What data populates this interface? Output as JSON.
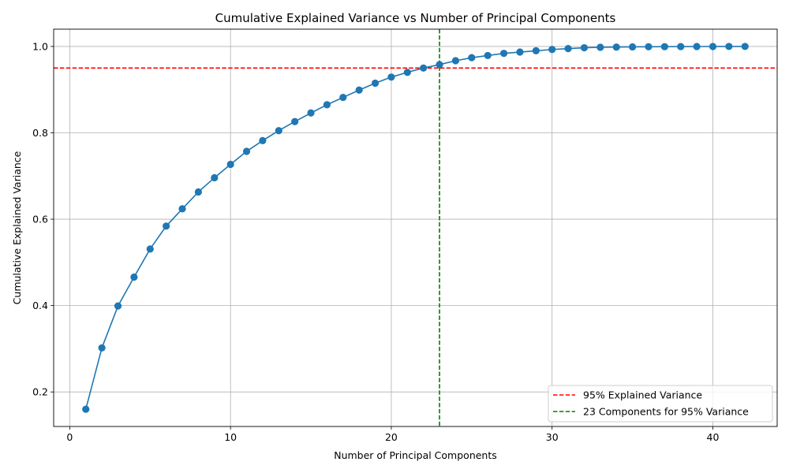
{
  "chart_data": {
    "type": "line",
    "title": "Cumulative Explained Variance vs Number of Principal Components",
    "xlabel": "Number of Principal Components",
    "ylabel": "Cumulative Explained Variance",
    "xlim": [
      -1,
      44
    ],
    "ylim": [
      0.12,
      1.04
    ],
    "xticks": [
      0,
      10,
      20,
      30,
      40
    ],
    "yticks": [
      0.2,
      0.4,
      0.6,
      0.8,
      1.0
    ],
    "ytick_labels": [
      "0.2",
      "0.4",
      "0.6",
      "0.8",
      "1.0"
    ],
    "grid": true,
    "legend_position": "bottom-right",
    "series": [
      {
        "color": "#1f77b4",
        "marker": "circle",
        "x": [
          1,
          2,
          3,
          4,
          5,
          6,
          7,
          8,
          9,
          10,
          11,
          12,
          13,
          14,
          15,
          16,
          17,
          18,
          19,
          20,
          21,
          22,
          23,
          24,
          25,
          26,
          27,
          28,
          29,
          30,
          31,
          32,
          33,
          34,
          35,
          36,
          37,
          38,
          39,
          40,
          41,
          42
        ],
        "y": [
          0.16,
          0.302,
          0.399,
          0.466,
          0.531,
          0.584,
          0.624,
          0.663,
          0.696,
          0.727,
          0.757,
          0.782,
          0.805,
          0.826,
          0.846,
          0.865,
          0.882,
          0.899,
          0.915,
          0.929,
          0.94,
          0.95,
          0.958,
          0.967,
          0.974,
          0.979,
          0.984,
          0.987,
          0.99,
          0.993,
          0.995,
          0.997,
          0.998,
          0.9985,
          0.999,
          0.9993,
          0.9995,
          0.9997,
          0.9998,
          0.9999,
          1.0,
          1.0
        ]
      }
    ],
    "reference_lines": [
      {
        "orientation": "horizontal",
        "value": 0.95,
        "color": "#ff0000",
        "style": "dashed",
        "label": "95% Explained Variance"
      },
      {
        "orientation": "vertical",
        "value": 23,
        "color": "#008000",
        "style": "dashed",
        "label": "23 Components for 95% Variance"
      }
    ]
  }
}
